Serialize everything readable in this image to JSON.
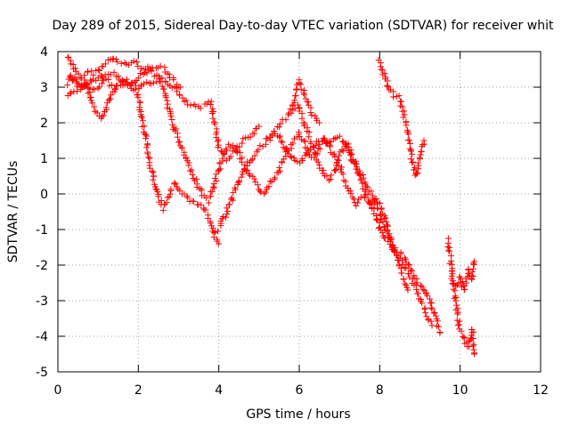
{
  "chart_data": {
    "type": "scatter",
    "title": "Day 289 of 2015, Sidereal Day-to-day VTEC variation (SDTVAR) for receiver whit",
    "xlabel": "GPS time / hours",
    "ylabel": "SDTVAR / TECUs",
    "xlim": [
      0,
      12
    ],
    "ylim": [
      -5,
      4
    ],
    "xticks": [
      0,
      2,
      4,
      6,
      8,
      10,
      12
    ],
    "yticks": [
      -5,
      -4,
      -3,
      -2,
      -1,
      0,
      1,
      2,
      3,
      4
    ],
    "grid": true,
    "marker": "+",
    "marker_color": "#ff0000",
    "tracks": [
      {
        "name": "track-1",
        "x": [
          0.25,
          0.35,
          0.45,
          0.6,
          0.75,
          0.9,
          1.05,
          1.2,
          1.35,
          1.5,
          1.7,
          1.9,
          2.1,
          2.3,
          2.5,
          2.65,
          2.8,
          2.95,
          3.05
        ],
        "y": [
          3.85,
          3.7,
          3.4,
          3.2,
          3.45,
          3.4,
          3.5,
          3.7,
          3.8,
          3.7,
          3.65,
          3.7,
          3.55,
          3.5,
          3.6,
          3.55,
          3.3,
          3.1,
          3.0
        ]
      },
      {
        "name": "track-2",
        "x": [
          0.25,
          0.35,
          0.5,
          0.65,
          0.8,
          1.0,
          1.2,
          1.4,
          1.6,
          1.8,
          2.0,
          2.15,
          2.3,
          2.45,
          2.6,
          2.75,
          2.9,
          3.0,
          3.15,
          3.3,
          3.5,
          3.7,
          3.8,
          3.9,
          4.0,
          4.2,
          4.4,
          4.6,
          4.8,
          5.0
        ],
        "y": [
          3.1,
          3.3,
          3.1,
          3.0,
          2.9,
          3.0,
          3.3,
          3.4,
          3.2,
          3.1,
          3.3,
          3.4,
          3.5,
          3.3,
          3.2,
          3.1,
          3.0,
          2.8,
          2.6,
          2.5,
          2.4,
          2.5,
          2.6,
          2.0,
          1.3,
          1.0,
          1.2,
          1.5,
          1.6,
          1.9
        ]
      },
      {
        "name": "track-3",
        "x": [
          0.25,
          0.4,
          0.55,
          0.7,
          0.85,
          0.95,
          1.1,
          1.25,
          1.4,
          1.55,
          1.7,
          1.85,
          2.0,
          2.1,
          2.2,
          2.3,
          2.4,
          2.5,
          2.6,
          2.7,
          2.8,
          2.9,
          3.0,
          3.1,
          3.2,
          3.3,
          3.4,
          3.5,
          3.6,
          3.7,
          3.8,
          3.9,
          4.0
        ],
        "y": [
          2.7,
          2.9,
          3.0,
          3.1,
          2.6,
          2.3,
          2.1,
          2.6,
          2.9,
          3.1,
          3.2,
          3.0,
          2.7,
          2.1,
          1.5,
          0.8,
          0.3,
          -0.1,
          -0.4,
          -0.2,
          0.1,
          0.3,
          0.1,
          0.0,
          -0.1,
          -0.2,
          -0.2,
          -0.3,
          -0.4,
          -0.5,
          -0.8,
          -1.2,
          -1.4
        ]
      },
      {
        "name": "track-4",
        "x": [
          0.3,
          0.45,
          0.6,
          0.75,
          0.9,
          1.05,
          1.2,
          1.4,
          1.6,
          1.8,
          2.0,
          2.2,
          2.4,
          2.55,
          2.7,
          2.85,
          3.0,
          3.15,
          3.3,
          3.45,
          3.6,
          3.75,
          3.9,
          4.05,
          4.2,
          4.35,
          4.5,
          4.7,
          4.9,
          5.1,
          5.3,
          5.5,
          5.7,
          5.9,
          6.0,
          6.1,
          6.2,
          6.3,
          6.4,
          6.5,
          6.6,
          6.7,
          6.8,
          6.9,
          7.0,
          7.1,
          7.2,
          7.3,
          7.4,
          7.5,
          7.6,
          7.7,
          7.8,
          7.9,
          8.0,
          8.1,
          8.2,
          8.3,
          8.4,
          8.5,
          8.6,
          8.7,
          8.8,
          8.9,
          9.0,
          9.1,
          9.2,
          9.3
        ],
        "y": [
          3.3,
          3.1,
          3.0,
          3.1,
          3.2,
          3.3,
          3.2,
          3.0,
          3.0,
          3.1,
          3.0,
          3.2,
          3.1,
          3.2,
          2.6,
          2.0,
          1.5,
          1.1,
          0.7,
          0.3,
          0.0,
          -0.2,
          0.3,
          0.9,
          1.3,
          1.4,
          1.1,
          0.7,
          0.3,
          0.0,
          0.3,
          0.7,
          1.2,
          1.5,
          1.7,
          1.5,
          1.2,
          1.0,
          1.1,
          1.3,
          1.6,
          1.4,
          1.2,
          1.0,
          0.8,
          0.5,
          0.2,
          -0.1,
          -0.3,
          -0.2,
          -0.1,
          -0.2,
          -0.3,
          -0.2,
          -0.3,
          -0.6,
          -1.0,
          -1.4,
          -1.7,
          -1.8,
          -2.0,
          -2.2,
          -2.4,
          -2.6,
          -2.9,
          -3.2,
          -3.5,
          -3.7
        ]
      },
      {
        "name": "track-5",
        "x": [
          4.0,
          4.15,
          4.3,
          4.45,
          4.6,
          4.75,
          4.9,
          5.05,
          5.2,
          5.35,
          5.5,
          5.65,
          5.8,
          5.95,
          6.1,
          6.25,
          6.4,
          6.55,
          6.7,
          6.85,
          7.0,
          7.15,
          7.3,
          7.45,
          7.6,
          7.75,
          7.9,
          8.0,
          8.15,
          8.3,
          8.45,
          8.6,
          8.75,
          8.9,
          9.05,
          9.2,
          9.35,
          9.5
        ],
        "y": [
          -1.0,
          -0.6,
          -0.2,
          0.2,
          0.6,
          0.9,
          1.1,
          1.3,
          1.5,
          1.7,
          1.6,
          1.3,
          1.0,
          0.9,
          1.0,
          1.2,
          1.4,
          1.5,
          1.4,
          1.5,
          1.6,
          1.4,
          1.0,
          0.6,
          0.2,
          -0.2,
          -0.6,
          -1.0,
          -1.3,
          -1.5,
          -1.6,
          -1.8,
          -2.1,
          -2.4,
          -2.6,
          -2.9,
          -3.3,
          -3.9
        ]
      },
      {
        "name": "track-6",
        "x": [
          5.2,
          5.35,
          5.5,
          5.65,
          5.8,
          5.95,
          6.05,
          6.15,
          6.25,
          6.35,
          6.45,
          6.55,
          6.65,
          6.75,
          6.85,
          6.95,
          7.05,
          7.15,
          7.25,
          7.35,
          7.5,
          7.65,
          7.8,
          7.95,
          8.1,
          8.25,
          8.4,
          8.55,
          8.7
        ],
        "y": [
          1.5,
          1.7,
          1.9,
          2.1,
          2.3,
          2.5,
          2.2,
          1.9,
          1.6,
          1.3,
          1.0,
          0.7,
          0.5,
          0.4,
          0.6,
          0.9,
          1.2,
          1.4,
          1.3,
          1.0,
          0.6,
          0.3,
          0.0,
          -0.4,
          -0.9,
          -1.3,
          -1.7,
          -2.2,
          -2.7
        ]
      },
      {
        "name": "track-7",
        "x": [
          5.8,
          5.9,
          6.0,
          6.1,
          6.2,
          6.3,
          6.4,
          6.5
        ],
        "y": [
          2.4,
          2.8,
          3.2,
          2.9,
          2.6,
          2.3,
          2.1,
          2.0
        ]
      },
      {
        "name": "track-8",
        "x": [
          8.0,
          8.1,
          8.2,
          8.35,
          8.5,
          8.6,
          8.7,
          8.8,
          8.9,
          9.0,
          9.1
        ],
        "y": [
          3.75,
          3.4,
          3.0,
          2.75,
          2.7,
          2.2,
          1.7,
          1.0,
          0.5,
          1.1,
          1.5
        ]
      },
      {
        "name": "track-9",
        "x": [
          9.7,
          9.8,
          9.9,
          10.0,
          10.1,
          10.2,
          10.3,
          10.35
        ],
        "y": [
          -1.3,
          -2.2,
          -3.2,
          -3.8,
          -4.1,
          -4.3,
          -3.8,
          -4.5
        ]
      },
      {
        "name": "track-10",
        "x": [
          9.8,
          9.9,
          10.0,
          10.1,
          10.2,
          10.3,
          10.35
        ],
        "y": [
          -2.4,
          -2.6,
          -2.3,
          -2.7,
          -2.1,
          -2.4,
          -1.9
        ]
      }
    ]
  }
}
